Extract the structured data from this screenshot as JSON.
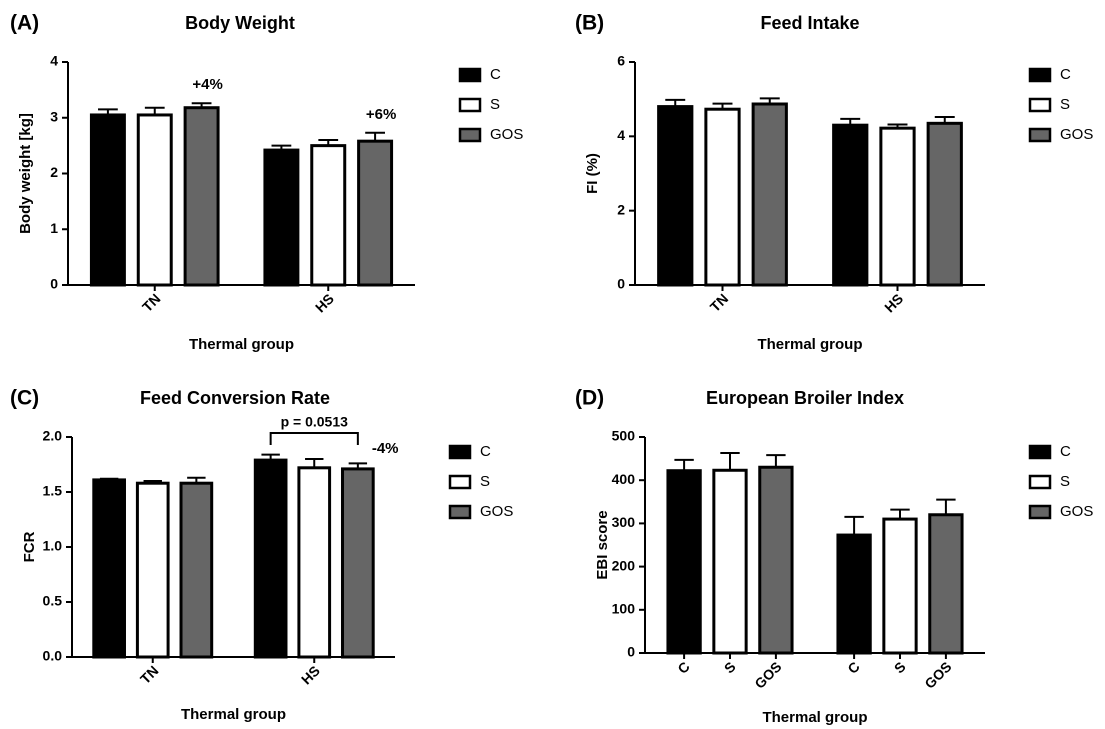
{
  "chart_data": [
    {
      "type": "bar",
      "panel": "(A)",
      "title": "Body Weight",
      "ylabel": "Body weight [kg]",
      "xlabel": "Thermal group",
      "categories": [
        "TN",
        "HS"
      ],
      "series": [
        {
          "name": "C",
          "color": "#000000",
          "values": [
            3.05,
            2.42
          ],
          "errors": [
            0.1,
            0.08
          ]
        },
        {
          "name": "S",
          "color": "#ffffff",
          "values": [
            3.05,
            2.5
          ],
          "errors": [
            0.13,
            0.1
          ]
        },
        {
          "name": "GOS",
          "color": "#666666",
          "values": [
            3.18,
            2.58
          ],
          "errors": [
            0.08,
            0.15
          ]
        }
      ],
      "ylim": [
        0,
        4
      ],
      "yticks": [
        0,
        1,
        2,
        3,
        4
      ],
      "annotations": [
        "+4%",
        "+6%"
      ]
    },
    {
      "type": "bar",
      "panel": "(B)",
      "title": "Feed Intake",
      "ylabel": "FI (%)",
      "xlabel": "Thermal group",
      "categories": [
        "TN",
        "HS"
      ],
      "series": [
        {
          "name": "C",
          "color": "#000000",
          "values": [
            4.8,
            4.3
          ],
          "errors": [
            0.18,
            0.17
          ]
        },
        {
          "name": "S",
          "color": "#ffffff",
          "values": [
            4.73,
            4.22
          ],
          "errors": [
            0.15,
            0.1
          ]
        },
        {
          "name": "GOS",
          "color": "#666666",
          "values": [
            4.87,
            4.35
          ],
          "errors": [
            0.15,
            0.17
          ]
        }
      ],
      "ylim": [
        0,
        6
      ],
      "yticks": [
        0,
        2,
        4,
        6
      ]
    },
    {
      "type": "bar",
      "panel": "(C)",
      "title": "Feed Conversion Rate",
      "ylabel": "FCR",
      "xlabel": "Thermal group",
      "categories": [
        "TN",
        "HS"
      ],
      "series": [
        {
          "name": "C",
          "color": "#000000",
          "values": [
            1.61,
            1.79
          ],
          "errors": [
            0.01,
            0.05
          ]
        },
        {
          "name": "S",
          "color": "#ffffff",
          "values": [
            1.58,
            1.72
          ],
          "errors": [
            0.02,
            0.08
          ]
        },
        {
          "name": "GOS",
          "color": "#666666",
          "values": [
            1.58,
            1.71
          ],
          "errors": [
            0.05,
            0.05
          ]
        }
      ],
      "ylim": [
        0,
        2
      ],
      "yticks": [
        {
          "value": 0,
          "label": "0.0"
        },
        0.5,
        {
          "value": 1,
          "label": "1.0"
        },
        1.5,
        {
          "value": 2,
          "label": "2.0"
        }
      ],
      "annotations": [
        "p = 0.0513",
        "-4%"
      ]
    },
    {
      "type": "bar",
      "panel": "(D)",
      "title": "European Broiler Index",
      "ylabel": "EBI score",
      "xlabel": "Thermal group",
      "categories": [
        null,
        null
      ],
      "series": [
        {
          "name": "C",
          "color": "#000000",
          "values": [
            422,
            273
          ],
          "errors": [
            25,
            42
          ]
        },
        {
          "name": "S",
          "color": "#ffffff",
          "values": [
            423,
            310
          ],
          "errors": [
            40,
            22
          ]
        },
        {
          "name": "GOS",
          "color": "#666666",
          "values": [
            430,
            320
          ],
          "errors": [
            28,
            35
          ]
        }
      ],
      "ylim": [
        0,
        500
      ],
      "yticks": [
        0,
        100,
        200,
        300,
        400,
        500
      ]
    }
  ]
}
